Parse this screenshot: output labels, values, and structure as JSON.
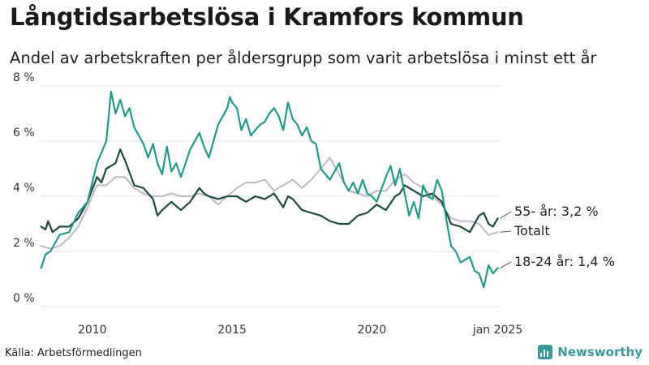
{
  "title": "Långtidsarbetslösa i Kramfors kommun",
  "subtitle": "Andel av arbetskraften per åldersgrupp som varit arbetslösa i minst ett år",
  "source": "Källa: Arbetsförmedlingen",
  "brand": "Newsworthy",
  "colors": {
    "youth": "#23998a",
    "older": "#1f4a3e",
    "total": "#bdb9c4",
    "grid": "#e3e3e3",
    "text": "#333333"
  },
  "chart_data": {
    "type": "line",
    "xlabel": "",
    "ylabel": "",
    "xlim": [
      2008.15,
      2024.6
    ],
    "ylim": [
      0,
      8
    ],
    "grid": true,
    "y_ticks": [
      {
        "value": 0,
        "label": "0 %"
      },
      {
        "value": 2,
        "label": "2 %"
      },
      {
        "value": 4,
        "label": "4 %"
      },
      {
        "value": 6,
        "label": "6 %"
      },
      {
        "value": 8,
        "label": "8 %"
      }
    ],
    "x_ticks": [
      {
        "value": 2010,
        "label": "2010"
      },
      {
        "value": 2015,
        "label": "2015"
      },
      {
        "value": 2020,
        "label": "2020"
      },
      {
        "value": 2024.5,
        "label": "jan 2025"
      }
    ],
    "series": [
      {
        "name": "Totalt",
        "color_key": "total",
        "label": "Totalt",
        "points": [
          [
            2008.17,
            2.2
          ],
          [
            2008.5,
            2.1
          ],
          [
            2008.83,
            2.2
          ],
          [
            2009.17,
            2.5
          ],
          [
            2009.5,
            2.9
          ],
          [
            2009.83,
            3.6
          ],
          [
            2010.17,
            4.4
          ],
          [
            2010.5,
            4.4
          ],
          [
            2010.83,
            4.7
          ],
          [
            2011.17,
            4.7
          ],
          [
            2011.5,
            4.3
          ],
          [
            2011.83,
            4.1
          ],
          [
            2012.17,
            4.0
          ],
          [
            2012.5,
            4.0
          ],
          [
            2012.83,
            4.1
          ],
          [
            2013.17,
            4.0
          ],
          [
            2013.5,
            4.0
          ],
          [
            2013.83,
            4.1
          ],
          [
            2014.17,
            4.0
          ],
          [
            2014.5,
            3.7
          ],
          [
            2014.83,
            4.0
          ],
          [
            2015.17,
            4.3
          ],
          [
            2015.5,
            4.5
          ],
          [
            2015.83,
            4.5
          ],
          [
            2016.17,
            4.6
          ],
          [
            2016.5,
            4.2
          ],
          [
            2016.83,
            4.4
          ],
          [
            2017.17,
            4.6
          ],
          [
            2017.5,
            4.3
          ],
          [
            2017.83,
            4.6
          ],
          [
            2018.17,
            5.0
          ],
          [
            2018.5,
            5.4
          ],
          [
            2018.83,
            4.8
          ],
          [
            2019.17,
            4.2
          ],
          [
            2019.5,
            4.1
          ],
          [
            2019.83,
            4.0
          ],
          [
            2020.17,
            4.2
          ],
          [
            2020.5,
            4.2
          ],
          [
            2020.83,
            4.6
          ],
          [
            2021.17,
            4.8
          ],
          [
            2021.5,
            4.5
          ],
          [
            2021.83,
            4.3
          ],
          [
            2022.17,
            4.0
          ],
          [
            2022.5,
            3.7
          ],
          [
            2022.83,
            3.2
          ],
          [
            2023.17,
            3.1
          ],
          [
            2023.5,
            3.1
          ],
          [
            2023.83,
            3.0
          ],
          [
            2024.17,
            2.6
          ],
          [
            2024.5,
            2.7
          ]
        ]
      },
      {
        "name": "55- år",
        "color_key": "older",
        "label": "55- år: 3,2 %",
        "points": [
          [
            2008.17,
            2.9
          ],
          [
            2008.33,
            2.8
          ],
          [
            2008.42,
            3.1
          ],
          [
            2008.58,
            2.7
          ],
          [
            2008.83,
            2.9
          ],
          [
            2009.17,
            2.9
          ],
          [
            2009.5,
            3.2
          ],
          [
            2009.83,
            3.8
          ],
          [
            2010.17,
            4.7
          ],
          [
            2010.33,
            4.5
          ],
          [
            2010.5,
            5.0
          ],
          [
            2010.83,
            5.2
          ],
          [
            2011.0,
            5.7
          ],
          [
            2011.17,
            5.3
          ],
          [
            2011.5,
            4.4
          ],
          [
            2011.83,
            4.3
          ],
          [
            2012.0,
            4.1
          ],
          [
            2012.17,
            3.9
          ],
          [
            2012.33,
            3.3
          ],
          [
            2012.5,
            3.5
          ],
          [
            2012.83,
            3.8
          ],
          [
            2013.17,
            3.5
          ],
          [
            2013.5,
            3.8
          ],
          [
            2013.83,
            4.3
          ],
          [
            2014.0,
            4.1
          ],
          [
            2014.17,
            4.0
          ],
          [
            2014.5,
            3.9
          ],
          [
            2014.83,
            4.0
          ],
          [
            2015.17,
            4.0
          ],
          [
            2015.5,
            3.8
          ],
          [
            2015.83,
            4.0
          ],
          [
            2016.17,
            3.9
          ],
          [
            2016.5,
            4.1
          ],
          [
            2016.83,
            3.6
          ],
          [
            2017.0,
            4.0
          ],
          [
            2017.17,
            3.9
          ],
          [
            2017.5,
            3.5
          ],
          [
            2017.83,
            3.4
          ],
          [
            2018.17,
            3.3
          ],
          [
            2018.5,
            3.1
          ],
          [
            2018.83,
            3.0
          ],
          [
            2019.17,
            3.0
          ],
          [
            2019.5,
            3.3
          ],
          [
            2019.83,
            3.4
          ],
          [
            2020.17,
            3.7
          ],
          [
            2020.5,
            3.5
          ],
          [
            2020.83,
            4.0
          ],
          [
            2021.0,
            4.1
          ],
          [
            2021.17,
            4.4
          ],
          [
            2021.5,
            4.2
          ],
          [
            2021.83,
            4.0
          ],
          [
            2022.17,
            4.1
          ],
          [
            2022.5,
            3.8
          ],
          [
            2022.83,
            3.0
          ],
          [
            2023.17,
            2.9
          ],
          [
            2023.5,
            2.7
          ],
          [
            2023.83,
            3.3
          ],
          [
            2024.0,
            3.4
          ],
          [
            2024.17,
            3.0
          ],
          [
            2024.33,
            2.9
          ],
          [
            2024.5,
            3.2
          ]
        ]
      },
      {
        "name": "18-24 år",
        "color_key": "youth",
        "label": "18-24 år: 1,4 %",
        "points": [
          [
            2008.17,
            1.4
          ],
          [
            2008.33,
            1.9
          ],
          [
            2008.5,
            2.0
          ],
          [
            2008.83,
            2.6
          ],
          [
            2009.17,
            2.7
          ],
          [
            2009.5,
            3.4
          ],
          [
            2009.83,
            3.8
          ],
          [
            2010.17,
            5.2
          ],
          [
            2010.5,
            6.0
          ],
          [
            2010.67,
            7.8
          ],
          [
            2010.83,
            7.0
          ],
          [
            2011.0,
            7.5
          ],
          [
            2011.17,
            6.9
          ],
          [
            2011.33,
            7.2
          ],
          [
            2011.5,
            6.5
          ],
          [
            2011.83,
            5.9
          ],
          [
            2012.0,
            5.4
          ],
          [
            2012.17,
            5.9
          ],
          [
            2012.33,
            5.2
          ],
          [
            2012.5,
            4.8
          ],
          [
            2012.67,
            5.8
          ],
          [
            2012.83,
            4.9
          ],
          [
            2013.0,
            5.2
          ],
          [
            2013.17,
            4.7
          ],
          [
            2013.5,
            5.7
          ],
          [
            2013.83,
            6.3
          ],
          [
            2014.0,
            5.8
          ],
          [
            2014.17,
            5.4
          ],
          [
            2014.5,
            6.6
          ],
          [
            2014.83,
            7.2
          ],
          [
            2014.92,
            7.6
          ],
          [
            2015.0,
            7.4
          ],
          [
            2015.17,
            7.2
          ],
          [
            2015.33,
            6.4
          ],
          [
            2015.5,
            6.8
          ],
          [
            2015.67,
            6.2
          ],
          [
            2015.83,
            6.4
          ],
          [
            2016.0,
            6.6
          ],
          [
            2016.17,
            6.7
          ],
          [
            2016.33,
            7.0
          ],
          [
            2016.5,
            7.2
          ],
          [
            2016.67,
            6.9
          ],
          [
            2016.83,
            6.4
          ],
          [
            2017.0,
            7.4
          ],
          [
            2017.17,
            6.8
          ],
          [
            2017.33,
            6.6
          ],
          [
            2017.5,
            6.2
          ],
          [
            2017.67,
            6.5
          ],
          [
            2017.83,
            6.0
          ],
          [
            2018.0,
            5.9
          ],
          [
            2018.17,
            5.0
          ],
          [
            2018.5,
            4.6
          ],
          [
            2018.83,
            5.2
          ],
          [
            2019.0,
            4.5
          ],
          [
            2019.17,
            4.2
          ],
          [
            2019.33,
            4.5
          ],
          [
            2019.5,
            4.1
          ],
          [
            2019.67,
            4.6
          ],
          [
            2019.83,
            4.1
          ],
          [
            2020.0,
            4.0
          ],
          [
            2020.17,
            3.8
          ],
          [
            2020.5,
            4.7
          ],
          [
            2020.67,
            5.1
          ],
          [
            2020.83,
            4.4
          ],
          [
            2021.0,
            5.0
          ],
          [
            2021.17,
            4.1
          ],
          [
            2021.33,
            3.3
          ],
          [
            2021.5,
            3.8
          ],
          [
            2021.67,
            3.2
          ],
          [
            2021.83,
            4.4
          ],
          [
            2022.0,
            4.0
          ],
          [
            2022.17,
            3.9
          ],
          [
            2022.33,
            4.6
          ],
          [
            2022.5,
            4.2
          ],
          [
            2022.67,
            3.1
          ],
          [
            2022.83,
            2.2
          ],
          [
            2023.0,
            2.0
          ],
          [
            2023.17,
            1.6
          ],
          [
            2023.5,
            1.8
          ],
          [
            2023.67,
            1.3
          ],
          [
            2023.83,
            1.2
          ],
          [
            2024.0,
            0.7
          ],
          [
            2024.17,
            1.5
          ],
          [
            2024.33,
            1.2
          ],
          [
            2024.5,
            1.4
          ]
        ]
      }
    ]
  }
}
